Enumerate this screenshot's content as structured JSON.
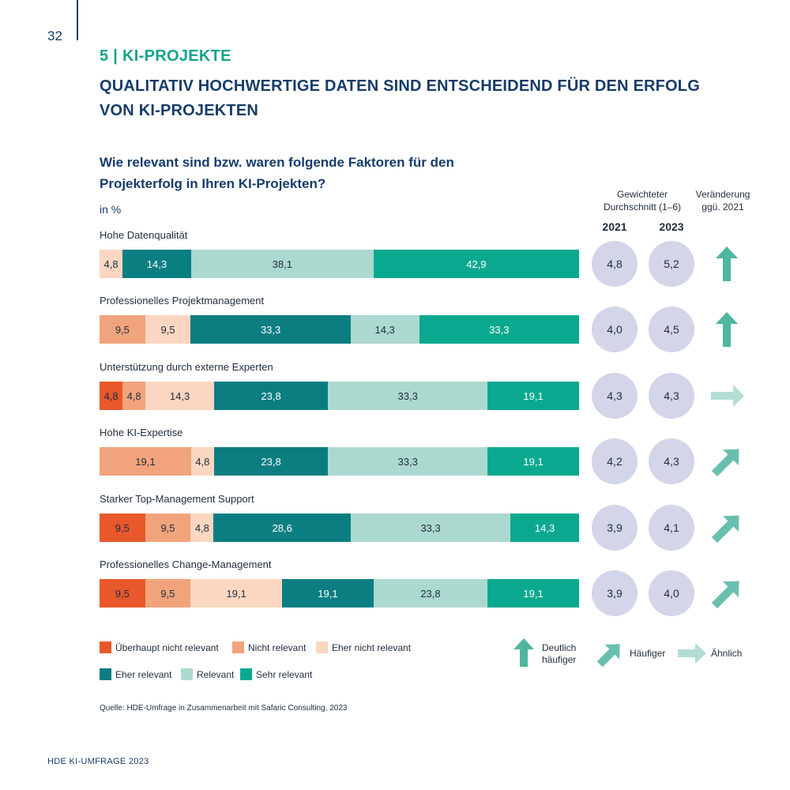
{
  "page": {
    "number": "32",
    "footer": "HDE KI-UMFRAGE 2023"
  },
  "section_title": "5 | KI-PROJEKTE",
  "headline_line1": "QUALITATIV HOCHWERTIGE DATEN SIND ENTSCHEIDEND FÜR DEN ERFOLG",
  "headline_line2": "VON KI-PROJEKTEN",
  "colors": {
    "Überhaupt nicht relevant": "#e8582a",
    "Nicht relevant": "#f1a47c",
    "Eher nicht relevant": "#fbd6c0",
    "Eher relevant": "#0b7e82",
    "Relevant": "#acd9cf",
    "Sehr relevant": "#0aa98f",
    "circle": "#d3d5e8",
    "arrow_strong": "#4fb6a0",
    "arrow_medium": "#69bfae",
    "arrow_flat": "#b3ddd4"
  },
  "chart_data": {
    "type": "bar",
    "orientation": "horizontal-stacked-100",
    "title": "Wie relevant sind bzw. waren folgende Faktoren für den Projekterfolg in Ihren KI-Projekten?",
    "title_line1": "Wie relevant sind bzw. waren folgende Faktoren für den",
    "title_line2": "Projekterfolg in Ihren KI-Projekten?",
    "unit": "in %",
    "xlim": [
      0,
      100
    ],
    "grid": false,
    "legend_position": "bottom",
    "series_names": [
      "Überhaupt nicht relevant",
      "Nicht relevant",
      "Eher nicht relevant",
      "Eher relevant",
      "Relevant",
      "Sehr relevant"
    ],
    "categories": [
      "Hohe Datenqualität",
      "Professionelles Projektmanagement",
      "Unterstützung durch externe Experten",
      "Hohe KI-Expertise",
      "Starker Top-Management Support",
      "Professionelles Change-Management"
    ],
    "rows": [
      {
        "label": "Hohe Datenqualität",
        "values": [
          0,
          0,
          4.8,
          14.3,
          38.1,
          42.9
        ],
        "labels": [
          "",
          "",
          "4,8",
          "14,3",
          "38,1",
          "42,9"
        ],
        "avg_2021": "4,8",
        "avg_2023": "5,2",
        "trend": "up-strong"
      },
      {
        "label": "Professionelles Projektmanagement",
        "values": [
          0,
          9.5,
          9.5,
          33.3,
          14.3,
          33.3
        ],
        "labels": [
          "",
          "9,5",
          "9,5",
          "33,3",
          "14,3",
          "33,3"
        ],
        "avg_2021": "4,0",
        "avg_2023": "4,5",
        "trend": "up-strong"
      },
      {
        "label": "Unterstützung durch externe Experten",
        "values": [
          4.8,
          4.8,
          14.3,
          23.8,
          33.3,
          19.1
        ],
        "labels": [
          "4,8",
          "4,8",
          "14,3",
          "23,8",
          "33,3",
          "19,1"
        ],
        "avg_2021": "4,3",
        "avg_2023": "4,3",
        "trend": "flat"
      },
      {
        "label": "Hohe KI-Expertise",
        "values": [
          0,
          19.1,
          4.8,
          23.8,
          33.3,
          19.1
        ],
        "labels": [
          "",
          "19,1",
          "4,8",
          "23,8",
          "33,3",
          "19,1"
        ],
        "avg_2021": "4,2",
        "avg_2023": "4,3",
        "trend": "up"
      },
      {
        "label": "Starker Top-Management Support",
        "values": [
          9.5,
          9.5,
          4.8,
          28.6,
          33.3,
          14.3
        ],
        "labels": [
          "9,5",
          "9,5",
          "4,8",
          "28,6",
          "33,3",
          "14,3"
        ],
        "avg_2021": "3,9",
        "avg_2023": "4,1",
        "trend": "up"
      },
      {
        "label": "Professionelles Change-Management",
        "values": [
          9.5,
          9.5,
          19.1,
          19.1,
          23.8,
          19.1
        ],
        "labels": [
          "9,5",
          "9,5",
          "19,1",
          "19,1",
          "23,8",
          "19,1"
        ],
        "avg_2021": "3,9",
        "avg_2023": "4,0",
        "trend": "up"
      }
    ],
    "avg_header_line1": "Gewichteter",
    "avg_header_line2": "Durchschnitt (1–6)",
    "change_header_line1": "Veränderung",
    "change_header_line2": "ggü. 2021",
    "year_2021": "2021",
    "year_2023": "2023"
  },
  "legend": {
    "items": [
      "Überhaupt nicht relevant",
      "Nicht relevant",
      "Eher nicht relevant",
      "Eher relevant",
      "Relevant",
      "Sehr relevant"
    ],
    "arrow_keys": {
      "up_strong_line1": "Deutlich",
      "up_strong_line2": "häufiger",
      "up": "Häufiger",
      "flat": "Ähnlich"
    }
  },
  "source": "Quelle: HDE-Umfrage in Zusammenarbeit mit Safaric Consulting, 2023"
}
